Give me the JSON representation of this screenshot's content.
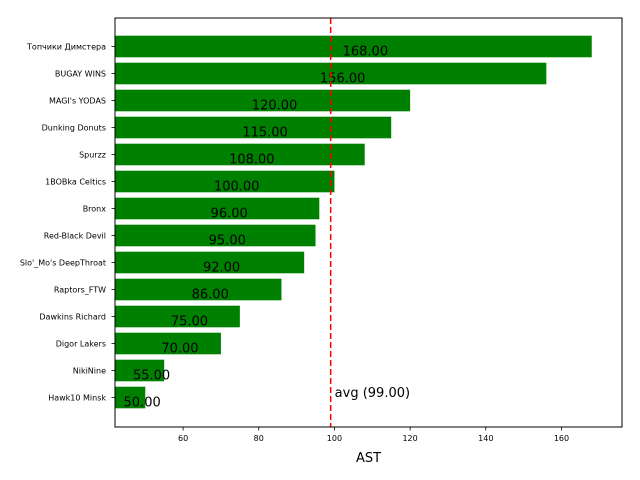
{
  "chart_data": {
    "type": "bar",
    "orientation": "horizontal",
    "categories": [
      "Hawk10 Minsk",
      "NikiNine",
      "Digor Lakers",
      "Dawkins Richard",
      "Raptors_FTW",
      "Slo'_Mo's DeepThroat",
      "Red-Black Devil",
      "Bronx",
      "1BOBka Celtics",
      "Spurzz",
      "Dunking Donuts",
      "MAGI's YODAS",
      "BUGAY WINS",
      "Топчики Димстера"
    ],
    "values": [
      50,
      55,
      70,
      75,
      86,
      92,
      95,
      96,
      100,
      108,
      115,
      120,
      156,
      168
    ],
    "value_labels": [
      "50.00",
      "55.00",
      "70.00",
      "75.00",
      "86.00",
      "92.00",
      "95.00",
      "96.00",
      "100.00",
      "108.00",
      "115.00",
      "120.00",
      "156.00",
      "168.00"
    ],
    "xlabel": "AST",
    "ylabel": "",
    "xlim": [
      42,
      176
    ],
    "xticks": [
      60,
      80,
      100,
      120,
      140,
      160
    ],
    "bar_color": "#008000",
    "average": {
      "value": 99,
      "label": "avg (99.00)",
      "color": "#ff0000",
      "style": "dashed"
    },
    "grid": false
  }
}
